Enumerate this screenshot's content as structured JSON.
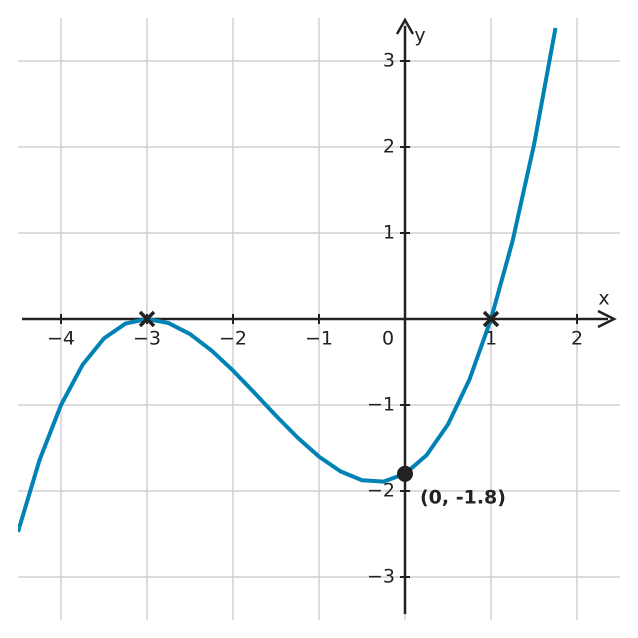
{
  "chart_data": {
    "type": "line",
    "x_label": "x",
    "y_label": "y",
    "x": [
      -4.5,
      -4.25,
      -4,
      -3.75,
      -3.5,
      -3.25,
      -3,
      -2.75,
      -2.5,
      -2.25,
      -2,
      -1.75,
      -1.5,
      -1.25,
      -1,
      -0.75,
      -0.5,
      -0.25,
      0,
      0.25,
      0.5,
      0.75,
      1,
      1.25,
      1.5,
      1.75
    ],
    "series": [
      {
        "color": "#0082b4",
        "values": [
          -2.475,
          -1.641,
          -1,
          -0.534,
          -0.225,
          -0.053,
          0,
          -0.047,
          -0.175,
          -0.366,
          -0.6,
          -0.859,
          -1.125,
          -1.378,
          -1.6,
          -1.772,
          -1.875,
          -1.891,
          -1.8,
          -1.584,
          -1.225,
          -0.703,
          0,
          0.903,
          2.025,
          3.384
        ]
      }
    ],
    "xlim": [
      -4.5,
      2.5
    ],
    "ylim": [
      -3.5,
      3.5
    ],
    "xticks": [
      {
        "value": -4,
        "label": "−4"
      },
      {
        "value": -3,
        "label": "−3"
      },
      {
        "value": -2,
        "label": "−2"
      },
      {
        "value": -1,
        "label": "−1"
      },
      0,
      1,
      2
    ],
    "yticks": [
      {
        "value": -3,
        "label": "−3"
      },
      {
        "value": -2,
        "label": "−2"
      },
      {
        "value": -1,
        "label": "−1"
      },
      1,
      2,
      3
    ],
    "grid": true,
    "roots": {
      "x": [
        -3,
        1
      ],
      "y": [
        0,
        0
      ]
    },
    "point": {
      "x": 0,
      "y": -1.8,
      "label": "(0, -1.8)"
    }
  }
}
